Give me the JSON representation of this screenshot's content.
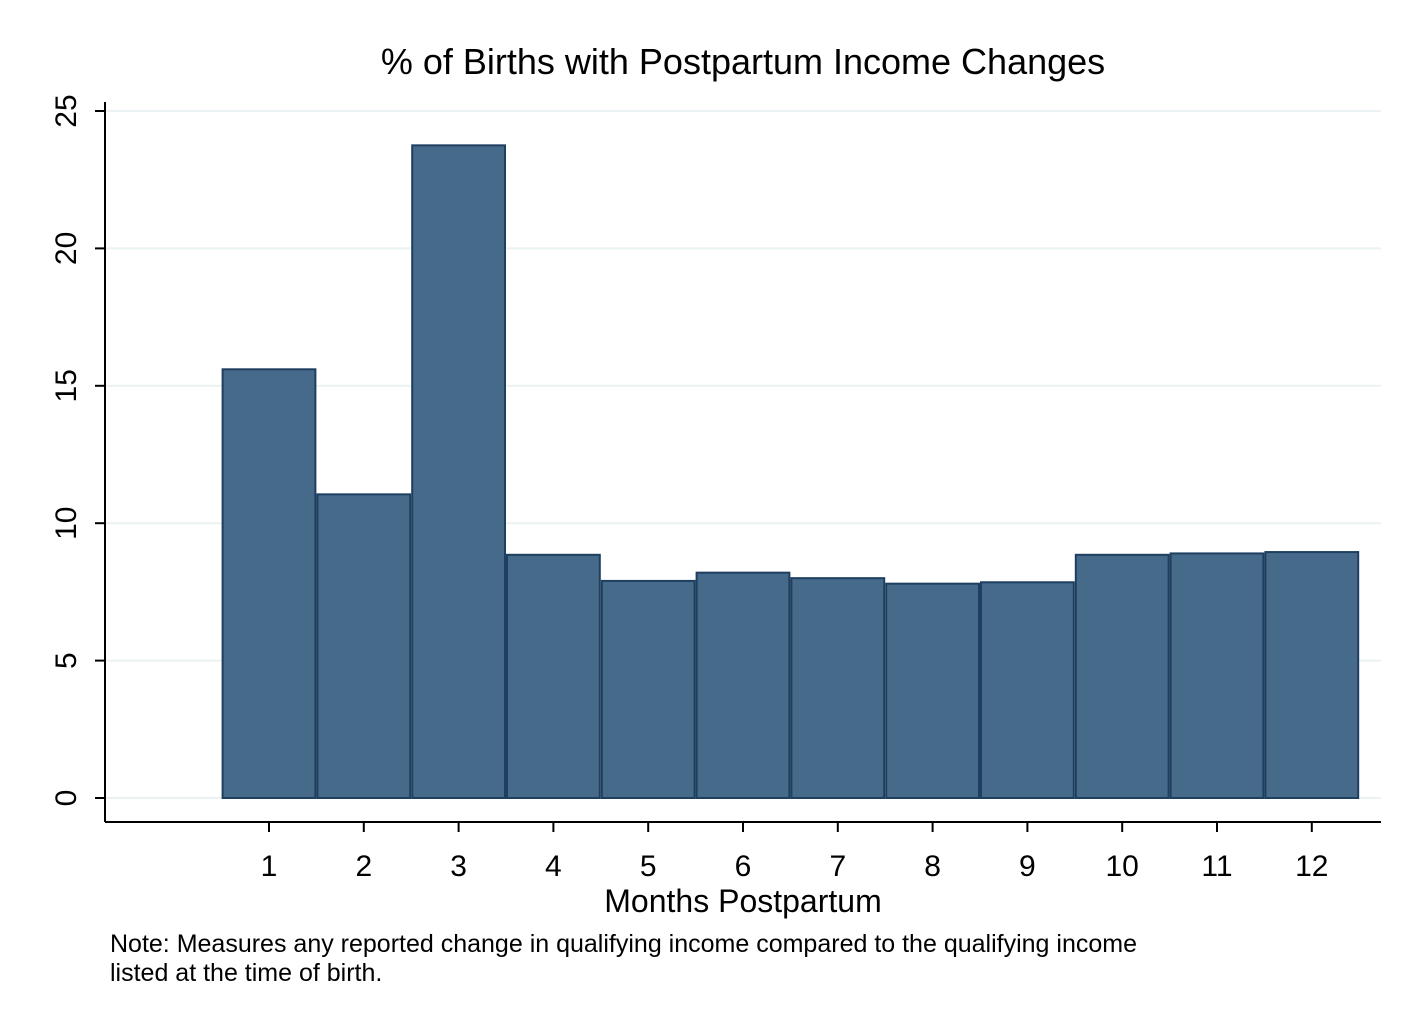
{
  "chart_data": {
    "type": "bar",
    "title": "% of Births with Postpartum Income Changes",
    "xlabel": "Months Postpartum",
    "ylabel": "",
    "categories": [
      "1",
      "2",
      "3",
      "4",
      "5",
      "6",
      "7",
      "8",
      "9",
      "10",
      "11",
      "12"
    ],
    "values": [
      15.6,
      11.05,
      23.75,
      8.85,
      7.9,
      8.2,
      8.0,
      7.8,
      7.85,
      8.85,
      8.9,
      8.95
    ],
    "ylim": [
      0,
      25
    ],
    "yticks": [
      "0",
      "5",
      "10",
      "15",
      "20",
      "25"
    ],
    "grid": true,
    "legend": "none",
    "bar_color": "#466a8a",
    "bar_edge_color": "#1f3f60",
    "grid_color": "#eaf2f3"
  },
  "note": {
    "line1": "Note: Measures any reported change in qualifying income compared to the qualifying income",
    "line2": "listed at the time of birth."
  }
}
